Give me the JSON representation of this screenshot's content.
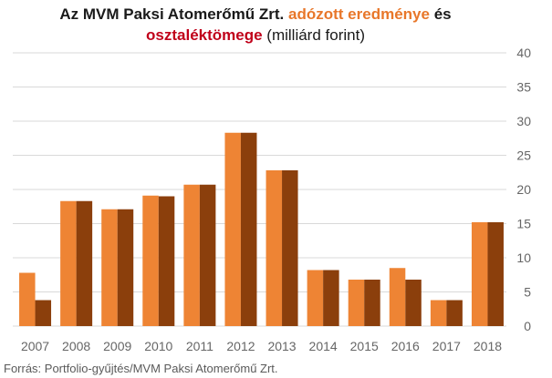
{
  "title": {
    "line1_prefix": "Az MVM Paksi Atomerőmű Zrt.",
    "line1_series1": "adózott eredménye",
    "line1_suffix": "és",
    "line2_series2": "osztaléktömege",
    "line2_unit": "(milliárd forint)"
  },
  "source": "Forrás: Portfolio-gyűjtés/MVM Paksi Atomerőmű Zrt.",
  "colors": {
    "series1": "#ee8434",
    "series2": "#8b3f0c",
    "title_series1": "#e8772a",
    "title_series2": "#c0001a",
    "grid": "#d9d9d9"
  },
  "chart_data": {
    "type": "bar",
    "categories": [
      "2007",
      "2008",
      "2009",
      "2010",
      "2011",
      "2012",
      "2013",
      "2014",
      "2015",
      "2016",
      "2017",
      "2018"
    ],
    "series": [
      {
        "name": "adózott eredménye",
        "values": [
          7.8,
          18.3,
          17.1,
          19.1,
          20.7,
          28.3,
          22.8,
          8.2,
          6.8,
          8.5,
          3.8,
          15.2
        ]
      },
      {
        "name": "osztaléktömege",
        "values": [
          3.8,
          18.3,
          17.1,
          19.0,
          20.7,
          28.3,
          22.8,
          8.2,
          6.8,
          6.8,
          3.8,
          15.2
        ]
      }
    ],
    "ylim": [
      0,
      40
    ],
    "yticks": [
      0,
      5,
      10,
      15,
      20,
      25,
      30,
      35,
      40
    ],
    "y_axis_side": "right",
    "grid": true
  }
}
